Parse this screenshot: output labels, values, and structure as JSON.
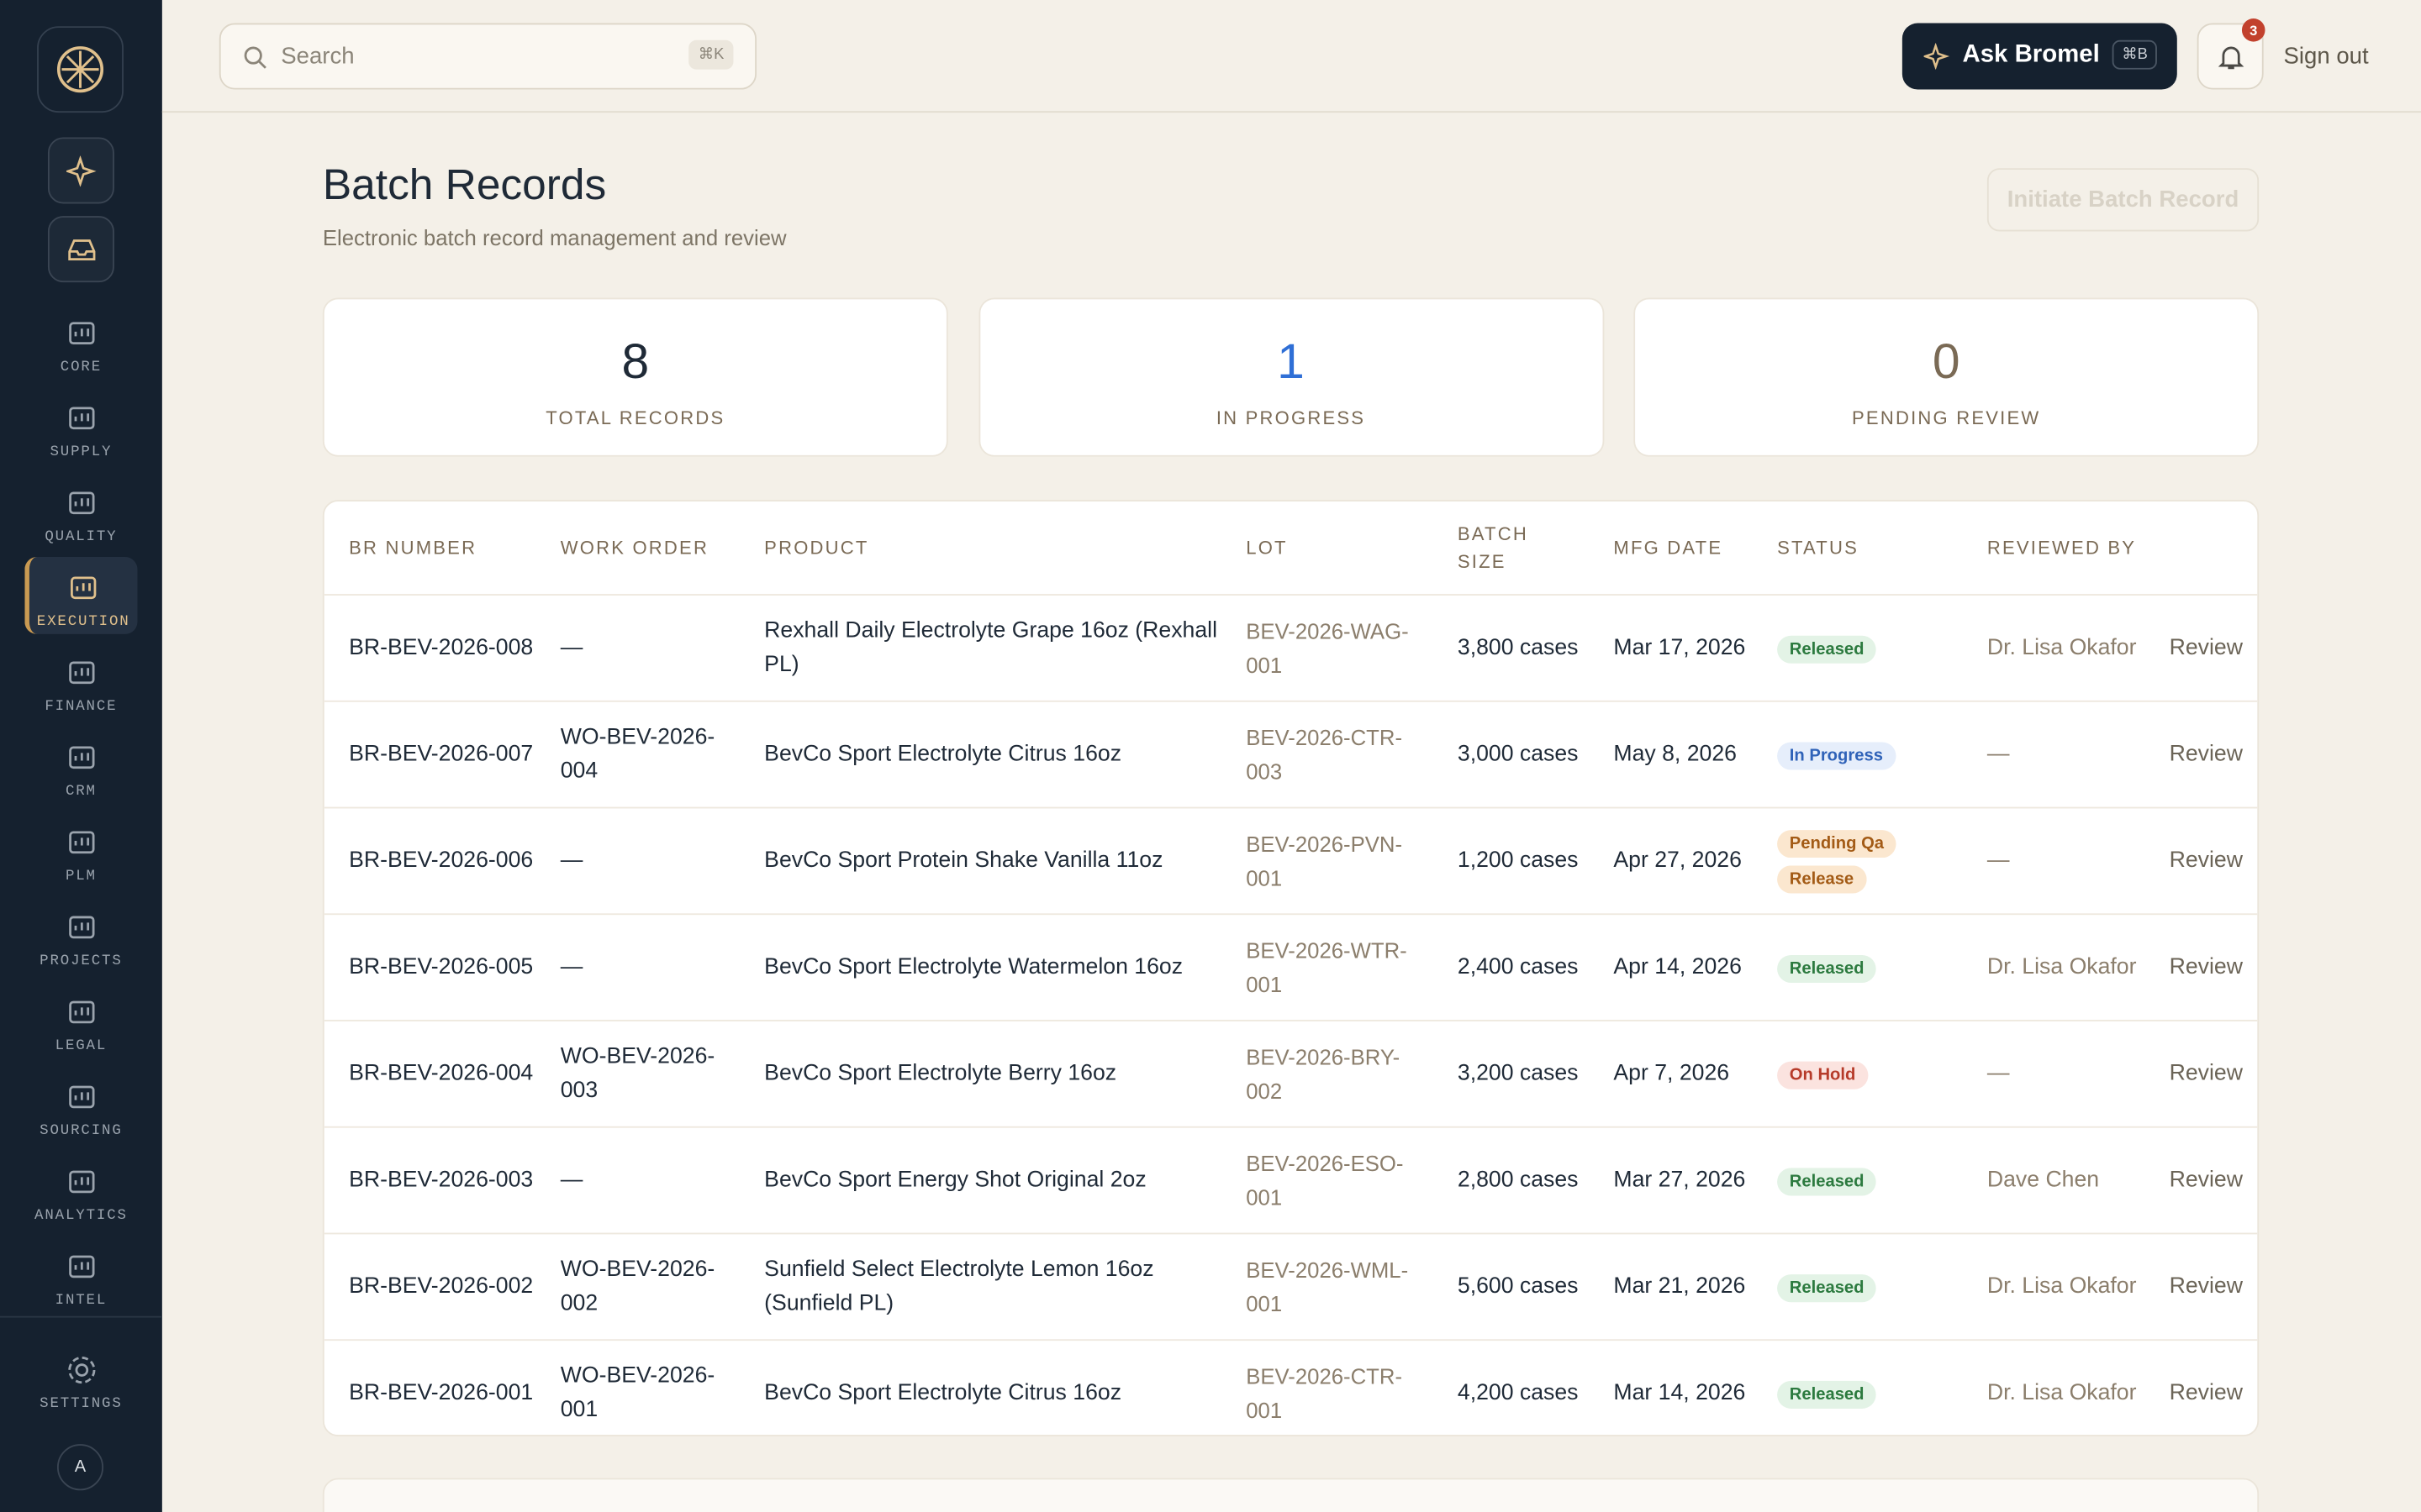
{
  "sidebar": {
    "items": [
      {
        "label": "CORE"
      },
      {
        "label": "SUPPLY"
      },
      {
        "label": "QUALITY"
      },
      {
        "label": "EXECUTION",
        "active": true
      },
      {
        "label": "FINANCE"
      },
      {
        "label": "CRM"
      },
      {
        "label": "PLM"
      },
      {
        "label": "PROJECTS"
      },
      {
        "label": "LEGAL"
      },
      {
        "label": "SOURCING"
      },
      {
        "label": "ANALYTICS"
      },
      {
        "label": "INTEL"
      }
    ],
    "settings": "SETTINGS",
    "avatar": "A"
  },
  "header": {
    "search_placeholder": "Search",
    "search_shortcut": "⌘K",
    "ask_button": "Ask Bromel",
    "ask_shortcut": "⌘B",
    "notification_count": 3,
    "sign_out": "Sign out"
  },
  "page": {
    "title": "Batch Records",
    "subtitle": "Electronic batch record management and review",
    "primary_button": "Initiate Batch Record"
  },
  "stats": [
    {
      "value": 8,
      "label": "TOTAL RECORDS",
      "color": "#1f2a37"
    },
    {
      "value": 1,
      "label": "IN PROGRESS",
      "color": "#2f6fd6"
    },
    {
      "value": 0,
      "label": "PENDING REVIEW",
      "color": "#7a6a55"
    }
  ],
  "table": {
    "columns": [
      "BR NUMBER",
      "WORK ORDER",
      "PRODUCT",
      "LOT",
      "BATCH SIZE",
      "MFG DATE",
      "STATUS",
      "REVIEWED BY"
    ],
    "action": "Review",
    "rows": [
      [
        "BR-BEV-2026-008",
        "—",
        "Rexhall Daily Electrolyte Grape 16oz (Rexhall PL)",
        "BEV-2026-WAG-001",
        "3,800 cases",
        "Mar 17, 2026",
        "Released",
        "Dr. Lisa Okafor"
      ],
      [
        "BR-BEV-2026-007",
        "WO-BEV-2026-004",
        "BevCo Sport Electrolyte Citrus 16oz",
        "BEV-2026-CTR-003",
        "3,000 cases",
        "May 8, 2026",
        "In Progress",
        "—"
      ],
      [
        "BR-BEV-2026-006",
        "—",
        "BevCo Sport Protein Shake Vanilla 11oz",
        "BEV-2026-PVN-001",
        "1,200 cases",
        "Apr 27, 2026",
        "Pending Qa Release",
        "—"
      ],
      [
        "BR-BEV-2026-005",
        "—",
        "BevCo Sport Electrolyte Watermelon 16oz",
        "BEV-2026-WTR-001",
        "2,400 cases",
        "Apr 14, 2026",
        "Released",
        "Dr. Lisa Okafor"
      ],
      [
        "BR-BEV-2026-004",
        "WO-BEV-2026-003",
        "BevCo Sport Electrolyte Berry 16oz",
        "BEV-2026-BRY-002",
        "3,200 cases",
        "Apr 7, 2026",
        "On Hold",
        "—"
      ],
      [
        "BR-BEV-2026-003",
        "—",
        "BevCo Sport Energy Shot Original 2oz",
        "BEV-2026-ESO-001",
        "2,800 cases",
        "Mar 27, 2026",
        "Released",
        "Dave Chen"
      ],
      [
        "BR-BEV-2026-002",
        "WO-BEV-2026-002",
        "Sunfield Select Electrolyte Lemon 16oz (Sunfield PL)",
        "BEV-2026-WML-001",
        "5,600 cases",
        "Mar 21, 2026",
        "Released",
        "Dr. Lisa Okafor"
      ],
      [
        "BR-BEV-2026-001",
        "WO-BEV-2026-001",
        "BevCo Sport Electrolyte Citrus 16oz",
        "BEV-2026-CTR-001",
        "4,200 cases",
        "Mar 14, 2026",
        "Released",
        "Dr. Lisa Okafor"
      ]
    ],
    "status_colors": [
      "green",
      "blue",
      "orange",
      "green",
      "red",
      "green",
      "green",
      "green"
    ]
  }
}
